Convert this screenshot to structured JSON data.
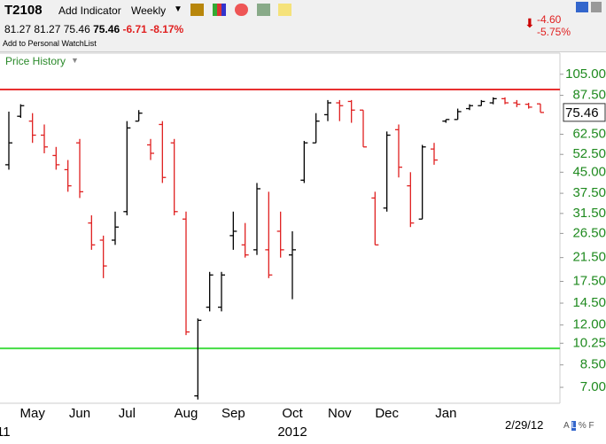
{
  "header": {
    "symbol": "T2108",
    "add_indicator": "Add Indicator",
    "period": "Weekly",
    "change": "-6.71",
    "change_pct": "-8.17%",
    "watchlist": "Add to Personal WatchList",
    "day_change": "-4.60",
    "day_change_pct": "-5.75%",
    "panel": "Price History",
    "date": "2/29/12"
  },
  "chart_data": {
    "type": "ohlc",
    "log_y": true,
    "up_color": "#000000",
    "down_color": "#e02020",
    "categories": [
      null,
      null,
      "May",
      null,
      null,
      null,
      "Jun",
      null,
      null,
      null,
      "Jul",
      null,
      null,
      null,
      null,
      "Aug",
      null,
      null,
      null,
      "Sep",
      null,
      null,
      null,
      null,
      "Oct",
      null,
      null,
      null,
      "Nov",
      null,
      null,
      null,
      "Dec",
      null,
      null,
      null,
      null,
      "Jan",
      null,
      null,
      null,
      null,
      null,
      null,
      null,
      null
    ],
    "year_labels": [
      "11",
      "2012"
    ],
    "open": [
      48,
      73,
      70,
      62,
      52,
      46,
      58,
      29,
      25,
      25,
      32,
      70,
      57,
      68,
      58,
      30,
      6.5,
      14,
      14,
      26,
      24,
      23,
      23,
      27,
      22,
      42,
      58,
      74,
      82,
      83,
      77,
      36,
      33,
      65,
      40,
      30,
      55,
      70,
      71,
      78,
      80,
      82,
      85,
      82,
      81,
      81.27
    ],
    "high": [
      76,
      81,
      75,
      68,
      56,
      50,
      60,
      31,
      26,
      32,
      70,
      77,
      60,
      70,
      60,
      32,
      12.7,
      19,
      19,
      32,
      29,
      41,
      38,
      32,
      27,
      59,
      75,
      84,
      84,
      84,
      77,
      38,
      64,
      68,
      45,
      57,
      58,
      71,
      78,
      81,
      84,
      86,
      86,
      84,
      82,
      81.27
    ],
    "low": [
      46,
      72,
      58,
      53,
      46,
      38,
      36,
      23,
      18,
      24,
      31,
      70,
      50,
      41,
      31,
      11,
      6.3,
      13.5,
      13.5,
      23,
      21.5,
      22,
      18,
      21.5,
      15,
      41,
      58,
      70,
      70,
      69,
      56,
      24,
      32,
      43,
      28,
      30,
      48,
      69,
      71,
      77,
      80,
      81,
      81,
      79,
      78,
      75.46
    ],
    "close": [
      58,
      80,
      62,
      56,
      48,
      40,
      38,
      24,
      20,
      28,
      66,
      75,
      53,
      43,
      32,
      11.3,
      12.5,
      18.5,
      18.5,
      27,
      22,
      39,
      18.5,
      23,
      23,
      58,
      70,
      82,
      80,
      77,
      56,
      24,
      62,
      47,
      29,
      56,
      50,
      71,
      76,
      80,
      83,
      85,
      82,
      81,
      79,
      75.46
    ],
    "ylim": [
      6.1,
      126
    ],
    "yticks": [
      {
        "value": 105,
        "label": "105.00"
      },
      {
        "value": 87.5,
        "label": "87.50"
      },
      {
        "value": 62.5,
        "label": "62.50"
      },
      {
        "value": 52.5,
        "label": "52.50"
      },
      {
        "value": 45,
        "label": "45.00"
      },
      {
        "value": 37.5,
        "label": "37.50"
      },
      {
        "value": 31.5,
        "label": "31.50"
      },
      {
        "value": 26.5,
        "label": "26.50"
      },
      {
        "value": 21.5,
        "label": "21.50"
      },
      {
        "value": 17.5,
        "label": "17.50"
      },
      {
        "value": 14.5,
        "label": "14.50"
      },
      {
        "value": 12,
        "label": "12.00"
      },
      {
        "value": 10.25,
        "label": "10.25"
      },
      {
        "value": 8.5,
        "label": "8.50"
      },
      {
        "value": 7,
        "label": "7.00"
      }
    ],
    "hlines": [
      {
        "value": 92,
        "color": "#e83030"
      },
      {
        "value": 9.8,
        "color": "#44dd44"
      }
    ]
  }
}
